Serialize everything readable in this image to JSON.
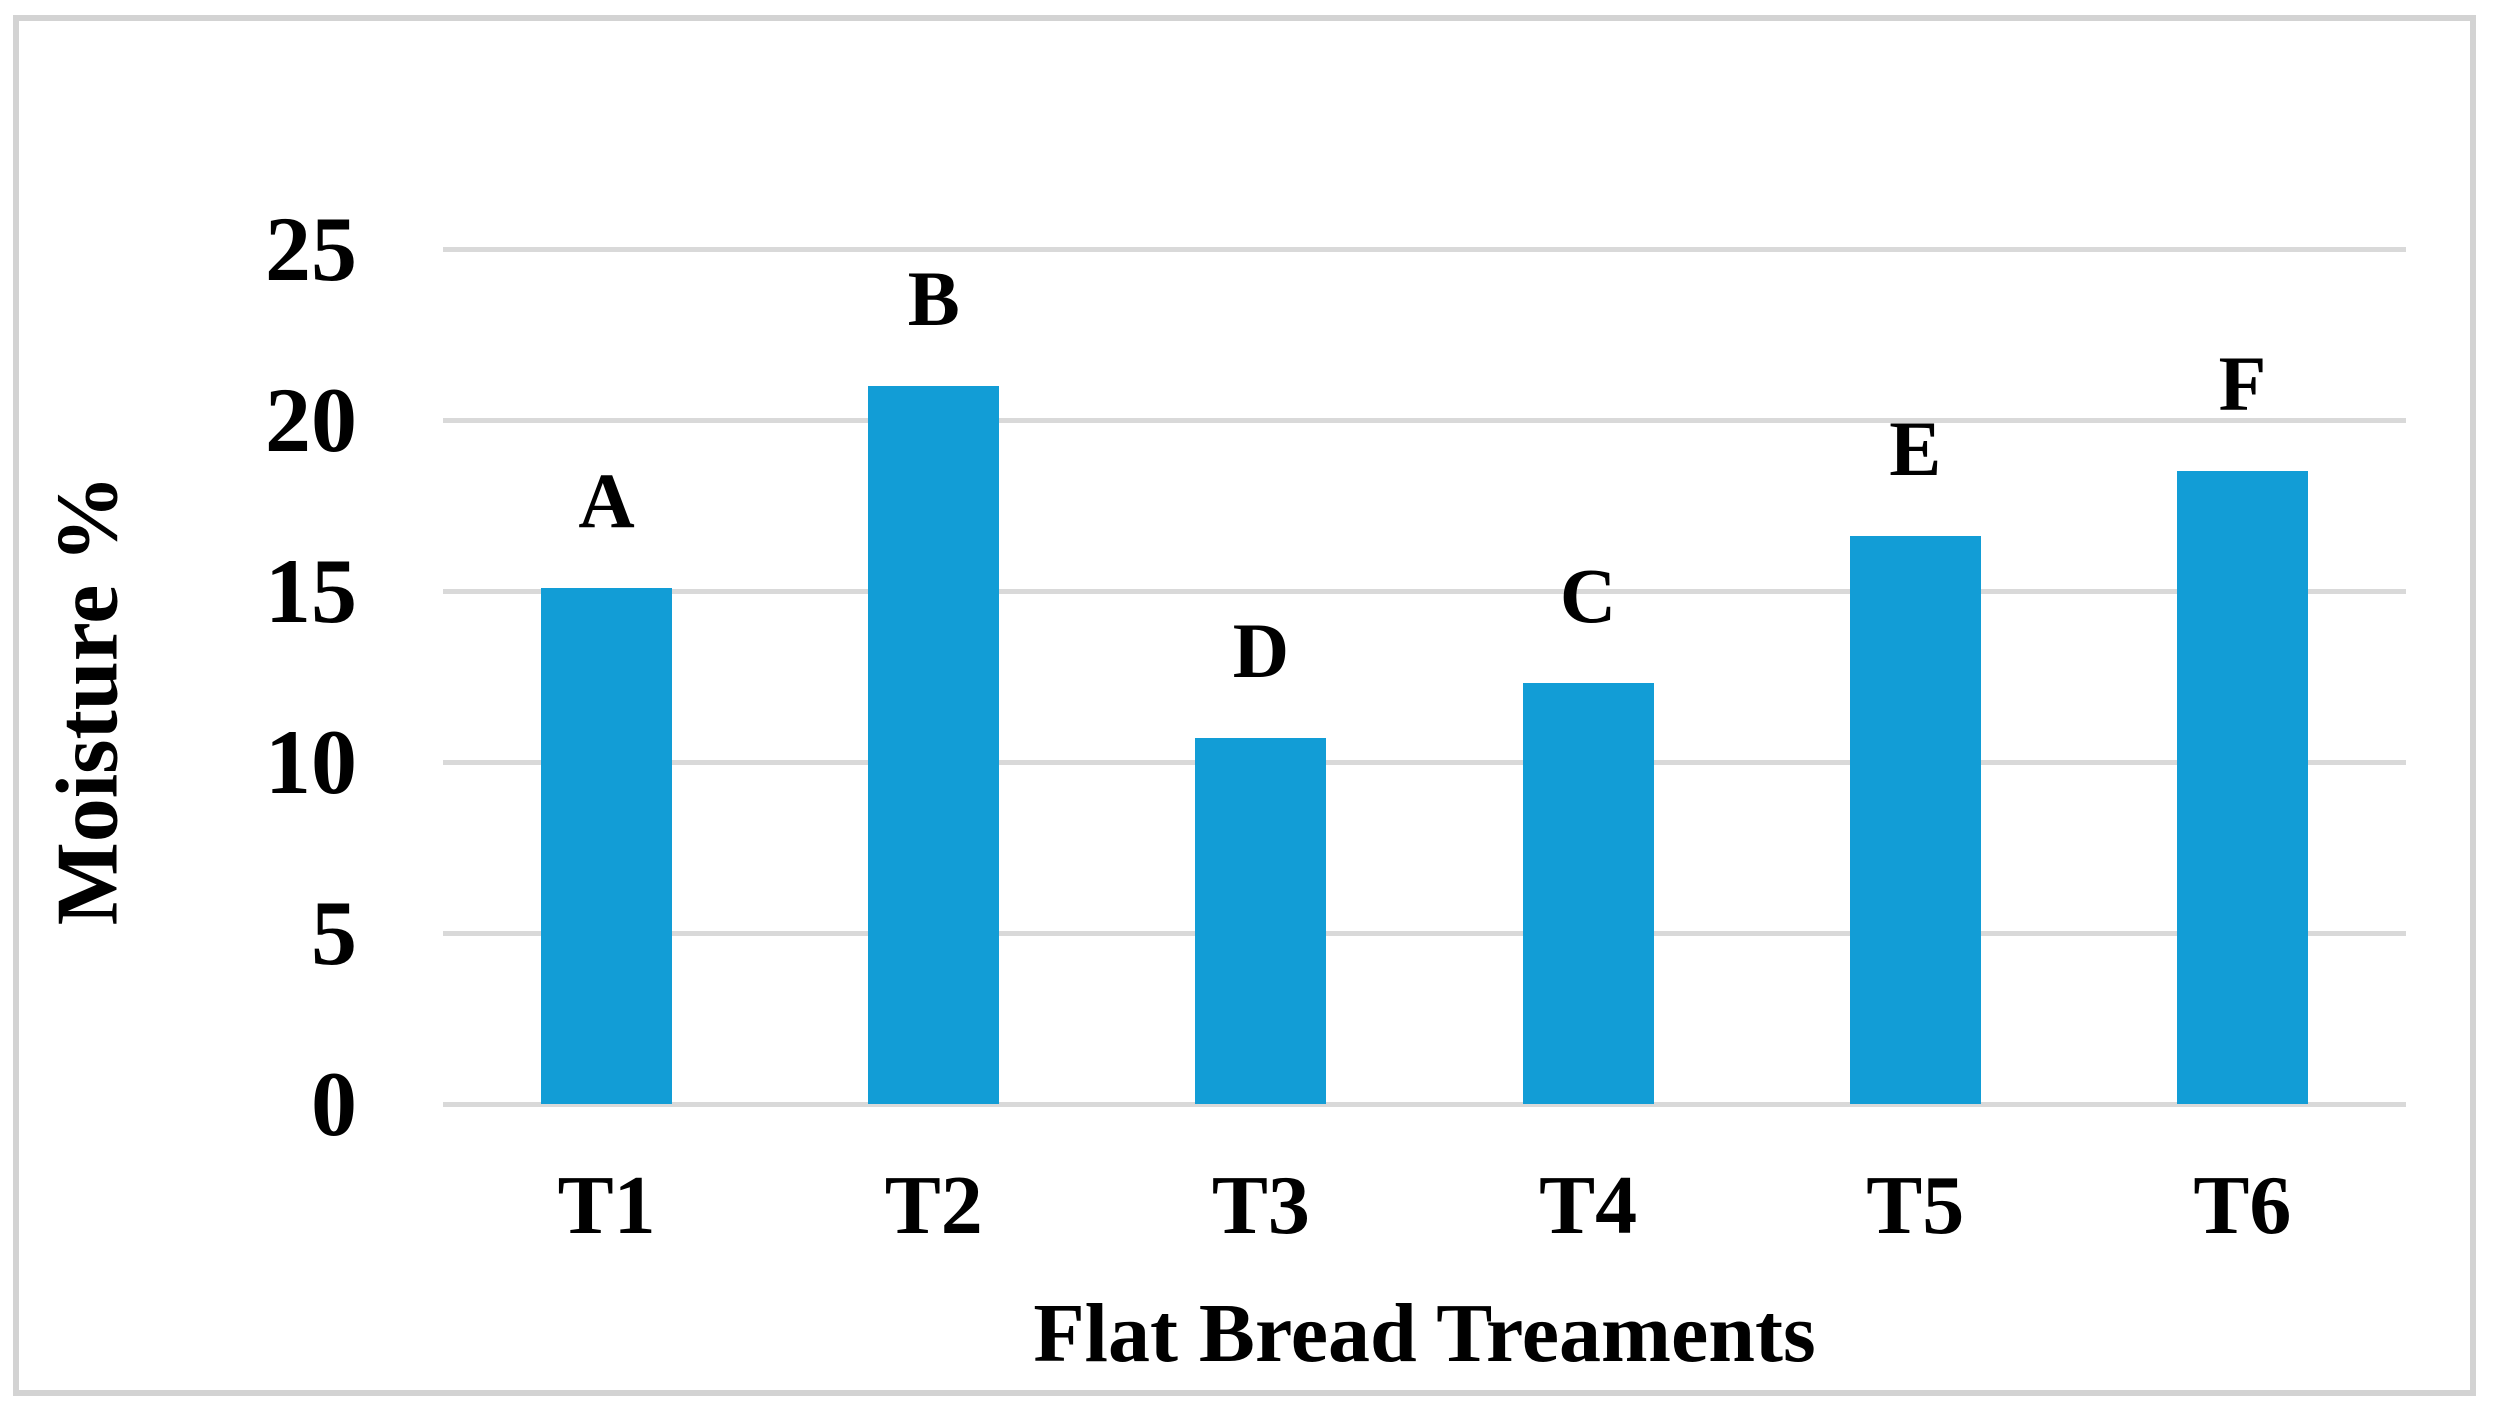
{
  "chart_data": {
    "type": "bar",
    "title": "",
    "xlabel": "Flat Bread Treaments",
    "ylabel": "Moisture %",
    "categories": [
      "T1",
      "T2",
      "T3",
      "T4",
      "T5",
      "T6"
    ],
    "values": [
      15.1,
      21.0,
      10.7,
      12.3,
      16.6,
      18.5
    ],
    "bar_labels": [
      "A",
      "B",
      "D",
      "C",
      "E",
      "F"
    ],
    "ylim": [
      0,
      25
    ],
    "yticks": [
      0,
      5,
      10,
      15,
      20,
      25
    ],
    "grid": true,
    "legend": false,
    "bar_color": "#129dd6",
    "gridline_color": "#d9d9d9",
    "border_color": "#d3d3d3",
    "text_color": "#000000"
  }
}
